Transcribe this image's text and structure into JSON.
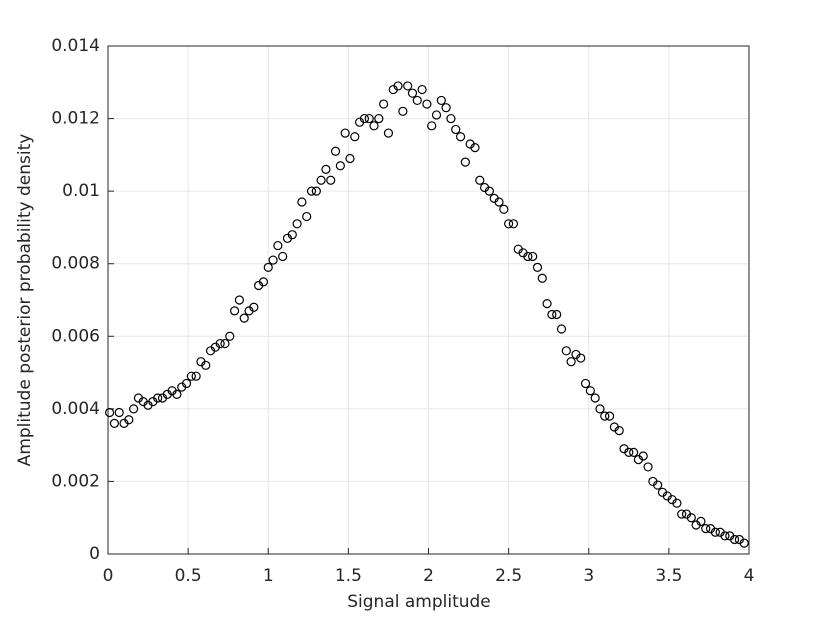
{
  "chart_data": {
    "type": "scatter",
    "xlabel": "Signal amplitude",
    "ylabel": "Amplitude posterior probability density",
    "xlim": [
      0,
      4
    ],
    "xticks": [
      0,
      0.5,
      1,
      1.5,
      2,
      2.5,
      3,
      3.5,
      4
    ],
    "ylim": [
      0,
      0.014
    ],
    "yticks": [
      0,
      0.002,
      0.004,
      0.006,
      0.008,
      0.01,
      0.012,
      0.014
    ],
    "grid": true,
    "color": "#000000",
    "x": [
      0.01,
      0.04,
      0.07,
      0.1,
      0.13,
      0.16,
      0.19,
      0.22,
      0.25,
      0.28,
      0.31,
      0.34,
      0.37,
      0.4,
      0.43,
      0.46,
      0.49,
      0.52,
      0.55,
      0.58,
      0.61,
      0.64,
      0.67,
      0.7,
      0.73,
      0.76,
      0.79,
      0.82,
      0.85,
      0.88,
      0.91,
      0.94,
      0.97,
      1,
      1.03,
      1.06,
      1.09,
      1.12,
      1.15,
      1.18,
      1.21,
      1.24,
      1.27,
      1.3,
      1.33,
      1.36,
      1.39,
      1.42,
      1.45,
      1.48,
      1.51,
      1.54,
      1.57,
      1.6,
      1.63,
      1.66,
      1.69,
      1.72,
      1.75,
      1.78,
      1.81,
      1.84,
      1.87,
      1.9,
      1.93,
      1.96,
      1.99,
      2.02,
      2.05,
      2.08,
      2.11,
      2.14,
      2.17,
      2.2,
      2.23,
      2.26,
      2.29,
      2.32,
      2.35,
      2.38,
      2.41,
      2.44,
      2.47,
      2.5,
      2.53,
      2.56,
      2.59,
      2.62,
      2.65,
      2.68,
      2.71,
      2.74,
      2.77,
      2.8,
      2.83,
      2.86,
      2.89,
      2.92,
      2.95,
      2.98,
      3.01,
      3.04,
      3.07,
      3.1,
      3.13,
      3.16,
      3.19,
      3.22,
      3.25,
      3.28,
      3.31,
      3.34,
      3.37,
      3.4,
      3.43,
      3.46,
      3.49,
      3.52,
      3.55,
      3.58,
      3.61,
      3.64,
      3.67,
      3.7,
      3.73,
      3.76,
      3.79,
      3.82,
      3.85,
      3.88,
      3.91,
      3.94,
      3.97
    ],
    "values": [
      0.0039,
      0.0036,
      0.0039,
      0.0036,
      0.0037,
      0.004,
      0.0043,
      0.0042,
      0.0041,
      0.0042,
      0.0043,
      0.0043,
      0.0044,
      0.0045,
      0.0044,
      0.0046,
      0.0047,
      0.0049,
      0.0049,
      0.0053,
      0.0052,
      0.0056,
      0.0057,
      0.0058,
      0.0058,
      0.006,
      0.0067,
      0.007,
      0.0065,
      0.0067,
      0.0068,
      0.0074,
      0.0075,
      0.0079,
      0.0081,
      0.0085,
      0.0082,
      0.0087,
      0.0088,
      0.0091,
      0.0097,
      0.0093,
      0.01,
      0.01,
      0.0103,
      0.0106,
      0.0103,
      0.0111,
      0.0107,
      0.0116,
      0.0109,
      0.0115,
      0.0119,
      0.012,
      0.012,
      0.0118,
      0.012,
      0.0124,
      0.0116,
      0.0128,
      0.0129,
      0.0122,
      0.0129,
      0.0127,
      0.0125,
      0.0128,
      0.0124,
      0.0118,
      0.0121,
      0.0125,
      0.0123,
      0.012,
      0.0117,
      0.0115,
      0.0108,
      0.0113,
      0.0112,
      0.0103,
      0.0101,
      0.01,
      0.0098,
      0.0097,
      0.0095,
      0.0091,
      0.0091,
      0.0084,
      0.0083,
      0.0082,
      0.0082,
      0.0079,
      0.0076,
      0.0069,
      0.0066,
      0.0066,
      0.0062,
      0.0056,
      0.0053,
      0.0055,
      0.0054,
      0.0047,
      0.0045,
      0.0043,
      0.004,
      0.0038,
      0.0038,
      0.0035,
      0.0034,
      0.0029,
      0.0028,
      0.0028,
      0.0026,
      0.0027,
      0.0024,
      0.002,
      0.0019,
      0.0017,
      0.0016,
      0.0015,
      0.0014,
      0.0011,
      0.0011,
      0.001,
      0.0008,
      0.0009,
      0.0007,
      0.0007,
      0.0006,
      0.0006,
      0.0005,
      0.0005,
      0.0004,
      0.0004,
      0.0003
    ]
  }
}
